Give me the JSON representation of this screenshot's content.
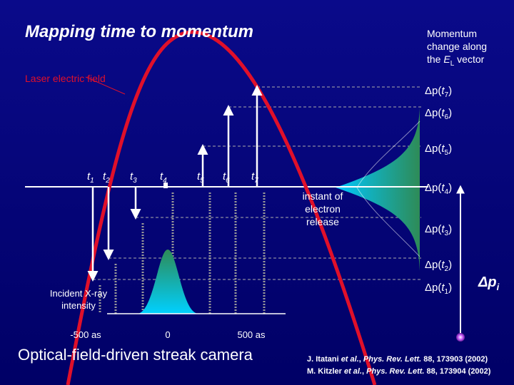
{
  "title": "Mapping time to momentum",
  "side_note": {
    "line1": "Momentum",
    "line2": "change along",
    "line3_prefix": "the ",
    "line3_symbol": "E",
    "line3_sub": "L",
    "line3_suffix": " vector"
  },
  "field_label": "Laser electric field",
  "time_labels": [
    {
      "symbol": "t",
      "sub": "1"
    },
    {
      "symbol": "t",
      "sub": "2"
    },
    {
      "symbol": "t",
      "sub": "3"
    },
    {
      "symbol": "t",
      "sub": "4"
    },
    {
      "symbol": "t",
      "sub": "5"
    },
    {
      "symbol": "t",
      "sub": "6"
    },
    {
      "symbol": "t",
      "sub": "7"
    }
  ],
  "momentum_labels": [
    {
      "prefix": "Δp(",
      "symbol": "t",
      "sub": "7",
      "suffix": ")"
    },
    {
      "prefix": "Δp(",
      "symbol": "t",
      "sub": "6",
      "suffix": ")"
    },
    {
      "prefix": "Δp(",
      "symbol": "t",
      "sub": "5",
      "suffix": ")"
    },
    {
      "prefix": "Δp(",
      "symbol": "t",
      "sub": "4",
      "suffix": ")"
    },
    {
      "prefix": "Δp(",
      "symbol": "t",
      "sub": "3",
      "suffix": ")"
    },
    {
      "prefix": "Δp(",
      "symbol": "t",
      "sub": "2",
      "suffix": ")"
    },
    {
      "prefix": "Δp(",
      "symbol": "t",
      "sub": "1",
      "suffix": ")"
    }
  ],
  "release_label": [
    "instant of",
    "electron",
    "release"
  ],
  "xray_label": [
    "Incident X-ray",
    "intensity"
  ],
  "time_axis": [
    "-500 as",
    "0",
    "500 as"
  ],
  "caption": "Optical-field-driven streak camera",
  "spread_label": {
    "symbol": "Δp",
    "sub": "i"
  },
  "references": [
    [
      {
        "text": "J. Itatani "
      },
      {
        "text": "et al.",
        "style": "italic"
      },
      {
        "text": ", "
      },
      {
        "text": "Phys. Rev. Lett.",
        "style": "italic"
      },
      {
        "text": " "
      },
      {
        "text": "88",
        "style": "bold"
      },
      {
        "text": ", 173903 (2002)"
      }
    ],
    [
      {
        "text": "M. Kitzler "
      },
      {
        "text": "et al.",
        "style": "italic"
      },
      {
        "text": ", "
      },
      {
        "text": "Phys. Rev. Lett.",
        "style": "italic"
      },
      {
        "text": " "
      },
      {
        "text": "88",
        "style": "bold"
      },
      {
        "text": ", 173904 (2002)"
      }
    ]
  ]
}
